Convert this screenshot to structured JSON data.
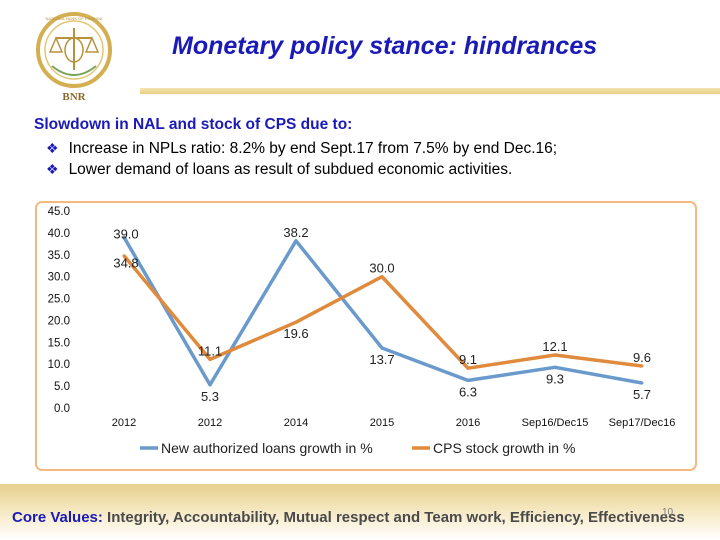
{
  "header": {
    "logo_text": "BNR",
    "logo_ring_text": "NATIONAL BANK OF RWANDA",
    "title": "Monetary policy stance: hindrances"
  },
  "intro": {
    "heading": "Slowdown in NAL and stock of CPS due to:",
    "bullets": [
      "Increase in NPLs ratio: 8.2% by end Sept.17 from 7.5% by end Dec.16;",
      "Lower demand of loans as result of subdued economic activities."
    ],
    "bullet_icon": "diamond-bullet-icon"
  },
  "chart_data": {
    "type": "line",
    "categories": [
      "2012",
      "2012",
      "2014",
      "2015",
      "2016",
      "Sep16/Dec15",
      "Sep17/Dec16"
    ],
    "series": [
      {
        "name": "New authorized loans growth in %",
        "values": [
          39.0,
          5.3,
          38.2,
          13.7,
          6.3,
          9.3,
          5.7
        ],
        "color": "#6a9acb"
      },
      {
        "name": "CPS stock growth in %",
        "values": [
          34.8,
          11.1,
          19.6,
          30.0,
          9.1,
          12.1,
          9.6
        ],
        "color": "#e08a3c"
      }
    ],
    "y_ticks": [
      "45.0",
      "40.0",
      "35.0",
      "30.0",
      "25.0",
      "20.0",
      "15.0",
      "10.0",
      "5.0",
      "0.0"
    ],
    "ylim": [
      0,
      45
    ],
    "grid": false,
    "legend": "bottom",
    "title": "",
    "xlabel": "",
    "ylabel": "",
    "frame_color": "#f5b97f"
  },
  "footer": {
    "label": "Core Values:",
    "values": "Integrity, Accountability, Mutual respect and Team work, Efficiency, Effectiveness",
    "page": "10"
  }
}
